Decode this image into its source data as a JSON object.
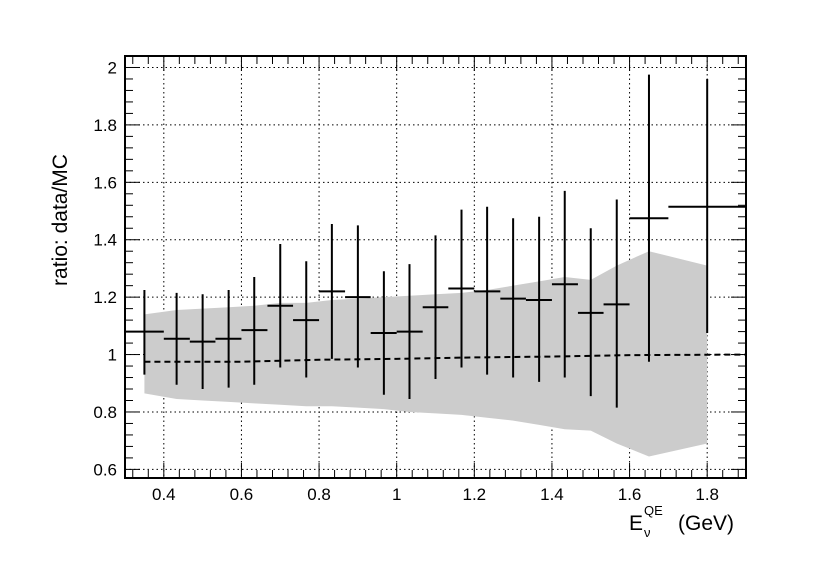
{
  "chart_data": {
    "type": "scatter",
    "xlabel": {
      "base": "E",
      "sub": "ν",
      "sup": "QE",
      "unit": "(GeV)"
    },
    "ylabel": "ratio: data/MC",
    "xlim": [
      0.3,
      1.9
    ],
    "ylim": [
      0.57,
      2.04
    ],
    "xticks": [
      0.4,
      0.6,
      0.8,
      1,
      1.2,
      1.4,
      1.6,
      1.8
    ],
    "xtick_labels": [
      "0.4",
      "0.6",
      "0.8",
      "1",
      "1.2",
      "1.4",
      "1.6",
      "1.8"
    ],
    "yticks": [
      0.6,
      0.8,
      1,
      1.2,
      1.4,
      1.6,
      1.8,
      2
    ],
    "ytick_labels": [
      "0.6",
      "0.8",
      "1",
      "1.2",
      "1.4",
      "1.6",
      "1.8",
      "2"
    ],
    "grid": true,
    "colors": {
      "band": "#cccccc",
      "points": "#000000",
      "reference": "#000000"
    },
    "series": [
      {
        "style": "points-with-errorbars",
        "x": [
          0.35,
          0.433,
          0.5,
          0.567,
          0.633,
          0.7,
          0.767,
          0.833,
          0.9,
          0.967,
          1.033,
          1.1,
          1.167,
          1.233,
          1.3,
          1.367,
          1.433,
          1.5,
          1.567,
          1.65,
          1.8
        ],
        "x_lo": [
          0.3,
          0.4,
          0.467,
          0.533,
          0.6,
          0.667,
          0.733,
          0.8,
          0.867,
          0.933,
          1.0,
          1.067,
          1.133,
          1.2,
          1.267,
          1.333,
          1.4,
          1.467,
          1.533,
          1.6,
          1.7
        ],
        "x_hi": [
          0.4,
          0.467,
          0.533,
          0.6,
          0.667,
          0.733,
          0.8,
          0.867,
          0.933,
          1.0,
          1.067,
          1.133,
          1.2,
          1.267,
          1.333,
          1.4,
          1.467,
          1.533,
          1.6,
          1.7,
          1.9
        ],
        "y": [
          1.08,
          1.055,
          1.045,
          1.055,
          1.085,
          1.17,
          1.12,
          1.22,
          1.2,
          1.075,
          1.08,
          1.165,
          1.23,
          1.22,
          1.195,
          1.19,
          1.245,
          1.145,
          1.175,
          1.475,
          1.515
        ],
        "y_lo": [
          0.93,
          0.895,
          0.88,
          0.885,
          0.895,
          0.955,
          0.92,
          0.985,
          0.955,
          0.86,
          0.845,
          0.915,
          0.955,
          0.93,
          0.92,
          0.905,
          0.92,
          0.855,
          0.815,
          0.975,
          1.075
        ],
        "y_hi": [
          1.225,
          1.215,
          1.21,
          1.225,
          1.27,
          1.385,
          1.325,
          1.455,
          1.45,
          1.29,
          1.315,
          1.415,
          1.505,
          1.515,
          1.475,
          1.48,
          1.57,
          1.44,
          1.54,
          1.975,
          1.96
        ]
      },
      {
        "style": "dashed-line",
        "x": [
          0.35,
          0.6,
          0.8,
          1.0,
          1.2,
          1.4,
          1.6,
          1.9
        ],
        "y": [
          0.975,
          0.975,
          0.982,
          0.985,
          0.99,
          0.993,
          0.998,
          1.0
        ]
      },
      {
        "style": "band",
        "x": [
          0.35,
          0.433,
          0.5,
          0.567,
          0.633,
          0.7,
          0.767,
          0.833,
          0.9,
          0.967,
          1.033,
          1.1,
          1.167,
          1.233,
          1.3,
          1.367,
          1.433,
          1.5,
          1.567,
          1.65,
          1.8
        ],
        "lower": [
          0.865,
          0.845,
          0.84,
          0.835,
          0.83,
          0.825,
          0.82,
          0.82,
          0.815,
          0.81,
          0.8,
          0.795,
          0.79,
          0.78,
          0.77,
          0.755,
          0.74,
          0.735,
          0.69,
          0.645,
          0.69
        ],
        "upper": [
          1.14,
          1.155,
          1.16,
          1.165,
          1.17,
          1.18,
          1.18,
          1.19,
          1.195,
          1.2,
          1.205,
          1.21,
          1.215,
          1.225,
          1.24,
          1.255,
          1.27,
          1.26,
          1.31,
          1.36,
          1.31
        ]
      }
    ]
  }
}
